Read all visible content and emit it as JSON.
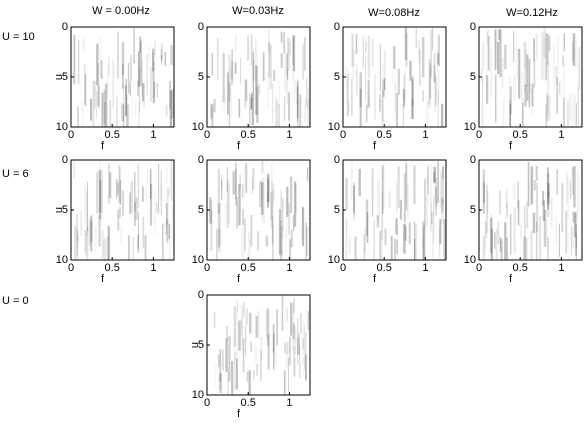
{
  "figure": {
    "column_titles": [
      "W = 0.00Hz",
      "W=0.03Hz",
      "W=0.08Hz",
      "W=0.12Hz"
    ],
    "row_labels": [
      "U = 10",
      "U = 6",
      "U = 0"
    ]
  },
  "chart_data": [
    {
      "type": "heatmap",
      "xlabel": "f",
      "ylabel": "u",
      "xlim": [
        0,
        1.25
      ],
      "xticks": [
        0,
        0.5,
        1
      ],
      "ylim": [
        0,
        10
      ],
      "yticks": [
        0,
        5,
        10
      ],
      "invert_y": true
    },
    {
      "type": "heatmap",
      "xlabel": "f",
      "xlim": [
        0,
        1.25
      ],
      "xticks": [
        0,
        0.5,
        1
      ],
      "ylim": [
        0,
        10
      ],
      "yticks": [
        0,
        5,
        10
      ],
      "invert_y": true
    },
    {
      "type": "heatmap",
      "xlabel": "f",
      "xlim": [
        0,
        1.25
      ],
      "xticks": [
        0,
        0.5,
        1
      ],
      "ylim": [
        0,
        10
      ],
      "yticks": [
        0,
        5,
        10
      ],
      "invert_y": true
    },
    {
      "type": "heatmap",
      "xlabel": "f",
      "xlim": [
        0,
        1.25
      ],
      "xticks": [
        0,
        0.5,
        1
      ],
      "ylim": [
        0,
        10
      ],
      "yticks": [
        0,
        5,
        10
      ],
      "invert_y": true
    },
    {
      "type": "heatmap",
      "xlabel": "f",
      "ylabel": "u",
      "xlim": [
        0,
        1.25
      ],
      "xticks": [
        0,
        0.5,
        1
      ],
      "ylim": [
        0,
        10
      ],
      "yticks": [
        0,
        5,
        10
      ],
      "invert_y": true
    },
    {
      "type": "heatmap",
      "xlabel": "f",
      "xlim": [
        0,
        1.25
      ],
      "xticks": [
        0,
        0.5,
        1
      ],
      "ylim": [
        0,
        10
      ],
      "yticks": [
        0,
        5,
        10
      ],
      "invert_y": true
    },
    {
      "type": "heatmap",
      "xlabel": "f",
      "xlim": [
        0,
        1.25
      ],
      "xticks": [
        0,
        0.5,
        1
      ],
      "ylim": [
        0,
        10
      ],
      "yticks": [
        0,
        5,
        10
      ],
      "invert_y": true
    },
    {
      "type": "heatmap",
      "xlabel": "f",
      "xlim": [
        0,
        1.25
      ],
      "xticks": [
        0,
        0.5,
        1
      ],
      "ylim": [
        0,
        10
      ],
      "yticks": [
        0,
        5,
        10
      ],
      "invert_y": true
    },
    {
      "type": "heatmap",
      "xlabel": "f",
      "ylabel": "u",
      "xlim": [
        0,
        1.25
      ],
      "xticks": [
        0,
        0.5,
        1
      ],
      "ylim": [
        0,
        10
      ],
      "yticks": [
        0,
        5,
        10
      ],
      "invert_y": true
    }
  ]
}
